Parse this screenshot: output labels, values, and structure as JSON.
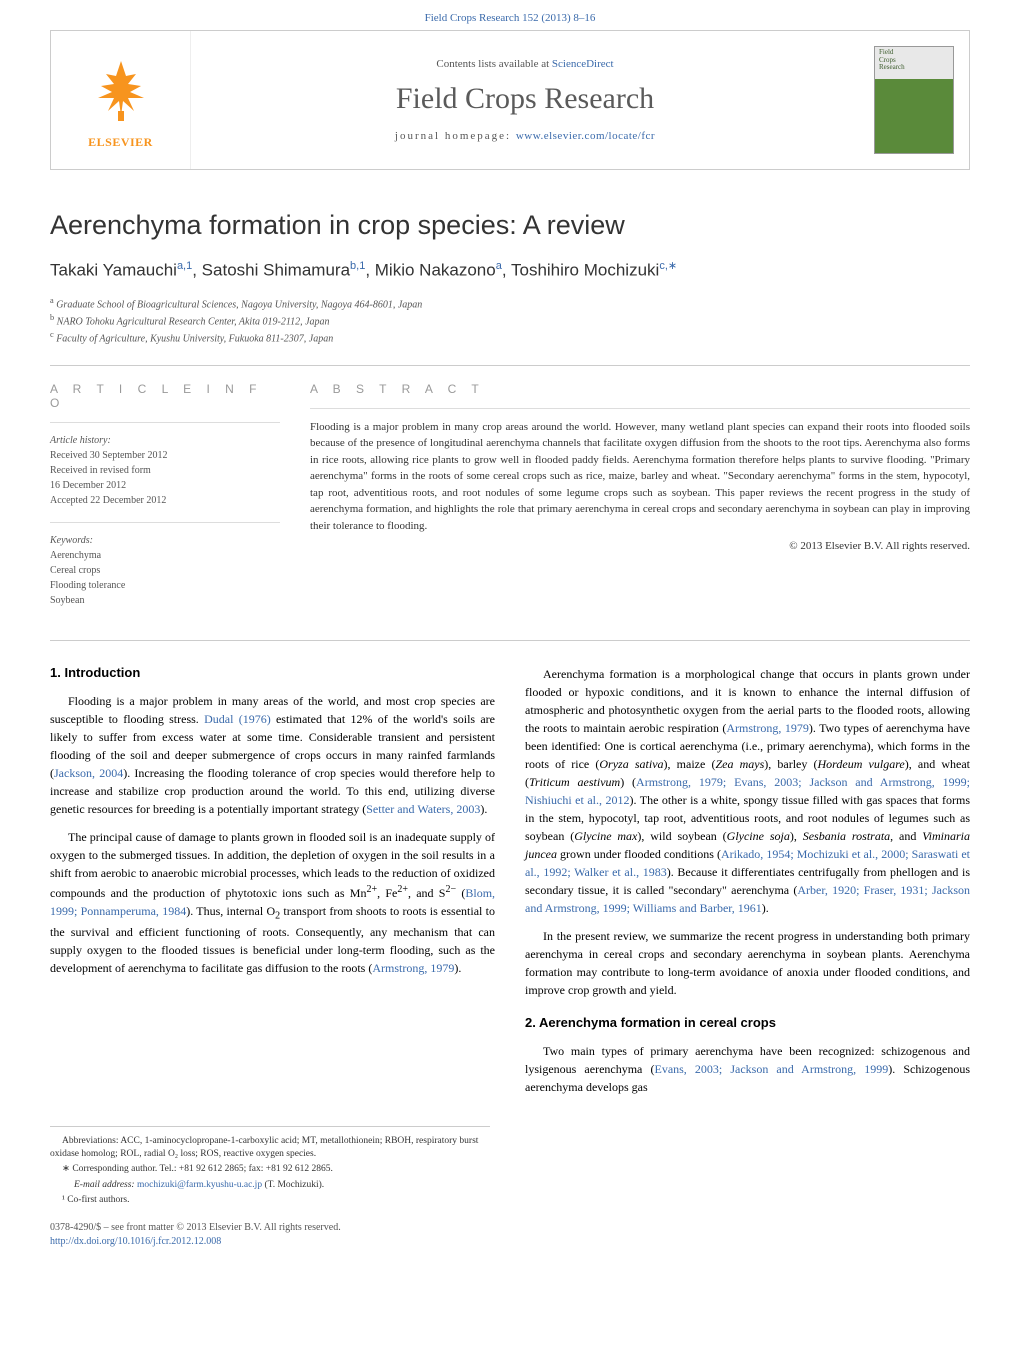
{
  "top_link": "Field Crops Research 152 (2013) 8–16",
  "header": {
    "contents_prefix": "Contents lists available at ",
    "contents_link": "ScienceDirect",
    "journal_name": "Field Crops Research",
    "homepage_prefix": "journal homepage: ",
    "homepage_link": "www.elsevier.com/locate/fcr",
    "publisher": "ELSEVIER",
    "cover_label": "Field\nCrops\nResearch"
  },
  "article": {
    "title": "Aerenchyma formation in crop species: A review",
    "authors_html": "Takaki Yamauchi<sup>a,1</sup>, Satoshi Shimamura<sup>b,1</sup>, Mikio Nakazono<sup>a</sup>, Toshihiro Mochizuki<sup>c,∗</sup>",
    "affiliations": [
      {
        "sup": "a",
        "text": "Graduate School of Bioagricultural Sciences, Nagoya University, Nagoya 464-8601, Japan"
      },
      {
        "sup": "b",
        "text": "NARO Tohoku Agricultural Research Center, Akita 019-2112, Japan"
      },
      {
        "sup": "c",
        "text": "Faculty of Agriculture, Kyushu University, Fukuoka 811-2307, Japan"
      }
    ]
  },
  "info": {
    "heading": "A R T I C L E   I N F O",
    "history_title": "Article history:",
    "history": [
      "Received 30 September 2012",
      "Received in revised form",
      "16 December 2012",
      "Accepted 22 December 2012"
    ],
    "keywords_title": "Keywords:",
    "keywords": [
      "Aerenchyma",
      "Cereal crops",
      "Flooding tolerance",
      "Soybean"
    ]
  },
  "abstract": {
    "heading": "A B S T R A C T",
    "text": "Flooding is a major problem in many crop areas around the world. However, many wetland plant species can expand their roots into flooded soils because of the presence of longitudinal aerenchyma channels that facilitate oxygen diffusion from the shoots to the root tips. Aerenchyma also forms in rice roots, allowing rice plants to grow well in flooded paddy fields. Aerenchyma formation therefore helps plants to survive flooding. \"Primary aerenchyma\" forms in the roots of some cereal crops such as rice, maize, barley and wheat. \"Secondary aerenchyma\" forms in the stem, hypocotyl, tap root, adventitious roots, and root nodules of some legume crops such as soybean. This paper reviews the recent progress in the study of aerenchyma formation, and highlights the role that primary aerenchyma in cereal crops and secondary aerenchyma in soybean can play in improving their tolerance to flooding.",
    "copyright": "© 2013 Elsevier B.V. All rights reserved."
  },
  "sections": {
    "intro_head": "1. Introduction",
    "cereal_head": "2. Aerenchyma formation in cereal crops"
  },
  "left_col": [
    {
      "indent": true,
      "html": "Flooding is a major problem in many areas of the world, and most crop species are susceptible to flooding stress. <span class='cite'>Dudal (1976)</span> estimated that 12% of the world's soils are likely to suffer from excess water at some time. Considerable transient and persistent flooding of the soil and deeper submergence of crops occurs in many rainfed farmlands (<span class='cite'>Jackson, 2004</span>). Increasing the flooding tolerance of crop species would therefore help to increase and stabilize crop production around the world. To this end, utilizing diverse genetic resources for breeding is a potentially important strategy (<span class='cite'>Setter and Waters, 2003</span>)."
    },
    {
      "indent": true,
      "html": "The principal cause of damage to plants grown in flooded soil is an inadequate supply of oxygen to the submerged tissues. In addition, the depletion of oxygen in the soil results in a shift from aerobic to anaerobic microbial processes, which leads to the reduction of oxidized compounds and the production of phytotoxic ions such as Mn<sup>2+</sup>, Fe<sup>2+</sup>, and S<sup>2−</sup> (<span class='cite'>Blom, 1999; Ponnamperuma, 1984</span>). Thus, internal O<sub>2</sub> transport from shoots to roots is essential to the survival and efficient functioning of roots. Consequently, any mechanism that can supply oxygen to the flooded tissues is beneficial under long-term flooding, such as the development of aerenchyma to facilitate gas diffusion to the roots (<span class='cite'>Armstrong, 1979</span>)."
    }
  ],
  "right_col": [
    {
      "indent": true,
      "html": "Aerenchyma formation is a morphological change that occurs in plants grown under flooded or hypoxic conditions, and it is known to enhance the internal diffusion of atmospheric and photosynthetic oxygen from the aerial parts to the flooded roots, allowing the roots to maintain aerobic respiration (<span class='cite'>Armstrong, 1979</span>). Two types of aerenchyma have been identified: One is cortical aerenchyma (i.e., primary aerenchyma), which forms in the roots of rice (<span class='species'>Oryza sativa</span>), maize (<span class='species'>Zea mays</span>), barley (<span class='species'>Hordeum vulgare</span>), and wheat (<span class='species'>Triticum aestivum</span>) (<span class='cite'>Armstrong, 1979; Evans, 2003; Jackson and Armstrong, 1999; Nishiuchi et al., 2012</span>). The other is a white, spongy tissue filled with gas spaces that forms in the stem, hypocotyl, tap root, adventitious roots, and root nodules of legumes such as soybean (<span class='species'>Glycine max</span>), wild soybean (<span class='species'>Glycine soja</span>), <span class='species'>Sesbania rostrata</span>, and <span class='species'>Viminaria juncea</span> grown under flooded conditions (<span class='cite'>Arikado, 1954; Mochizuki et al., 2000; Saraswati et al., 1992; Walker et al., 1983</span>). Because it differentiates centrifugally from phellogen and is secondary tissue, it is called \"secondary\" aerenchyma (<span class='cite'>Arber, 1920; Fraser, 1931; Jackson and Armstrong, 1999; Williams and Barber, 1961</span>)."
    },
    {
      "indent": true,
      "html": "In the present review, we summarize the recent progress in understanding both primary aerenchyma in cereal crops and secondary aerenchyma in soybean plants. Aerenchyma formation may contribute to long-term avoidance of anoxia under flooded conditions, and improve crop growth and yield."
    }
  ],
  "cereal_para": {
    "indent": true,
    "html": "Two main types of primary aerenchyma have been recognized: schizogenous and lysigenous aerenchyma (<span class='cite'>Evans, 2003; Jackson and Armstrong, 1999</span>). Schizogenous aerenchyma develops gas"
  },
  "footnotes": {
    "abbrev": "Abbreviations: ACC, 1-aminocyclopropane-1-carboxylic acid; MT, metallothionein; RBOH, respiratory burst oxidase homolog; ROL, radial O₂ loss; ROS, reactive oxygen species.",
    "corr": "∗ Corresponding author. Tel.: +81 92 612 2865; fax: +81 92 612 2865.",
    "email_label": "E-mail address: ",
    "email": "mochizuki@farm.kyushu-u.ac.jp",
    "email_suffix": " (T. Mochizuki).",
    "cofirst": "¹ Co-first authors."
  },
  "footer": {
    "issn": "0378-4290/$ – see front matter © 2013 Elsevier B.V. All rights reserved.",
    "doi": "http://dx.doi.org/10.1016/j.fcr.2012.12.008"
  },
  "colors": {
    "link": "#3a6aab",
    "orange": "#f7941e",
    "text": "#333333",
    "muted": "#555555",
    "border": "#cccccc"
  }
}
